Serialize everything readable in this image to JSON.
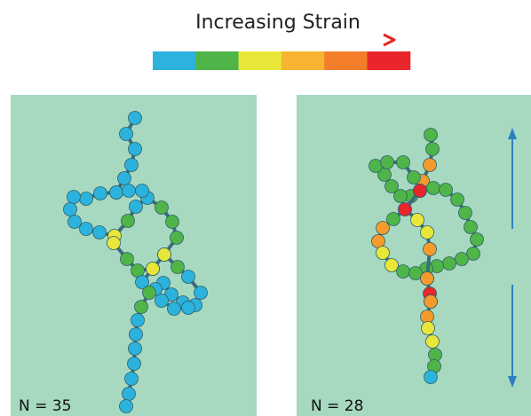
{
  "header": {
    "title": "Increasing Strain",
    "scale_colors": [
      "#2bb3de",
      "#4fb548",
      "#e9e63a",
      "#f7b431",
      "#f27e2b",
      "#e8262b"
    ]
  },
  "panels": [
    {
      "label": "N = 35",
      "background": "#a6d9c0"
    },
    {
      "label": "N = 28",
      "background": "#a6d9c0"
    }
  ],
  "arrow_color": "#2e7fc1"
}
